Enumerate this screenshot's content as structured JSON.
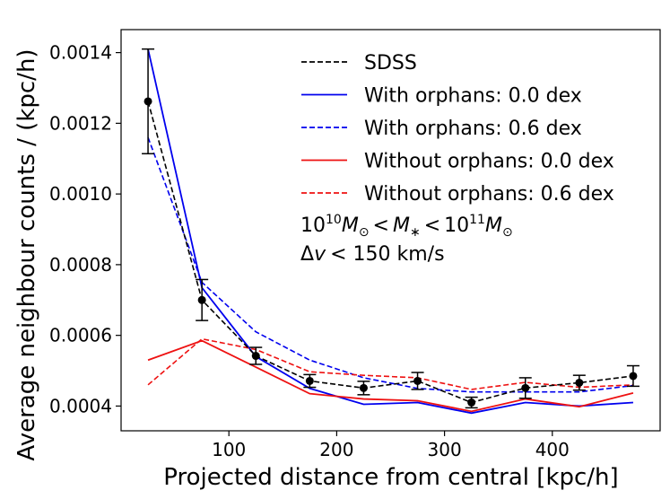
{
  "chart_data": {
    "type": "line",
    "xlabel": "Projected distance from central [kpc/h]",
    "ylabel": "Average neighbour counts / (kpc/h)",
    "xlim": [
      0,
      500
    ],
    "ylim": [
      0.00033,
      0.001465
    ],
    "xticks": [
      100,
      200,
      300,
      400
    ],
    "yticks": [
      0.0004,
      0.0006,
      0.0008,
      0.001,
      0.0012,
      0.0014
    ],
    "ytick_labels": [
      "0.0004",
      "0.0006",
      "0.0008",
      "0.0010",
      "0.0012",
      "0.0014"
    ],
    "x": [
      25,
      75,
      125,
      175,
      225,
      275,
      325,
      375,
      425,
      475
    ],
    "series": [
      {
        "name": "SDSS",
        "color": "#000000",
        "dash": true,
        "markers": true,
        "values": [
          0.001262,
          0.0007,
          0.000542,
          0.000471,
          0.000451,
          0.000471,
          0.00041,
          0.000451,
          0.000466,
          0.000485
        ],
        "yerr": [
          0.000148,
          5.8e-05,
          2.4e-05,
          1.8e-05,
          1.9e-05,
          2.4e-05,
          1.5e-05,
          2.9e-05,
          2.1e-05,
          2.9e-05
        ]
      },
      {
        "name": "With orphans: 0.0 dex",
        "color": "#0000ee",
        "dash": false,
        "markers": false,
        "values": [
          0.00141,
          0.000735,
          0.00054,
          0.00045,
          0.000405,
          0.00041,
          0.00038,
          0.00041,
          0.0004,
          0.00041
        ]
      },
      {
        "name": "With orphans: 0.6 dex",
        "color": "#0000ee",
        "dash": true,
        "markers": false,
        "values": [
          0.00116,
          0.00075,
          0.00061,
          0.00053,
          0.00048,
          0.00045,
          0.00044,
          0.00044,
          0.00044,
          0.000458
        ]
      },
      {
        "name": "Without orphans: 0.0 dex",
        "color": "#ee1111",
        "dash": false,
        "markers": false,
        "values": [
          0.00053,
          0.000585,
          0.00051,
          0.000435,
          0.00042,
          0.000415,
          0.000385,
          0.00042,
          0.000398,
          0.000437
        ]
      },
      {
        "name": "Without orphans: 0.6 dex",
        "color": "#ee1111",
        "dash": true,
        "markers": false,
        "values": [
          0.00046,
          0.00059,
          0.00056,
          0.000497,
          0.000487,
          0.00048,
          0.000447,
          0.000467,
          0.000453,
          0.00046
        ]
      }
    ],
    "annotations": [
      "10^10 M_⊙ < M_∗ < 10^11 M_⊙",
      "Δv < 150 km/s"
    ],
    "legend_position": "top-right"
  },
  "annotation_parts": {
    "mass_ten_a": "10",
    "mass_exp_a": "10",
    "mass_M_a": "M",
    "mass_sun_a": "⊙",
    "mass_lt_a": "<",
    "mass_M_star": "M",
    "mass_star_sub": "∗",
    "mass_lt_b": "<",
    "mass_ten_b": "10",
    "mass_exp_b": "11",
    "mass_M_b": "M",
    "mass_sun_b": "⊙",
    "dv_delta": "Δ",
    "dv_v": "v",
    "dv_rest": "< 150 km/s"
  }
}
